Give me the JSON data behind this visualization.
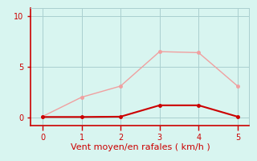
{
  "x": [
    0,
    1,
    2,
    3,
    4,
    5
  ],
  "y_rafales": [
    0.1,
    2.0,
    3.1,
    6.5,
    6.4,
    3.1
  ],
  "y_moyen": [
    0.05,
    0.05,
    0.08,
    1.2,
    1.2,
    0.08
  ],
  "line_color_rafales": "#f0a0a0",
  "line_color_moyen": "#cc0000",
  "bg_color": "#d8f5f0",
  "grid_color": "#aacfcf",
  "spine_color": "#888888",
  "axis_line_color": "#cc0000",
  "xlabel": "Vent moyen/en rafales ( km/h )",
  "xlabel_color": "#cc0000",
  "ytick_labels": [
    "0",
    "5",
    "10"
  ],
  "ytick_vals": [
    0,
    5,
    10
  ],
  "xtick_vals": [
    0,
    1,
    2,
    3,
    4,
    5
  ],
  "ylim": [
    -0.8,
    10.8
  ],
  "xlim": [
    -0.3,
    5.3
  ],
  "tick_color": "#cc0000",
  "xlabel_fontsize": 8,
  "tick_fontsize": 7,
  "linewidth_rafales": 1.0,
  "linewidth_moyen": 1.5,
  "markersize": 2.5
}
